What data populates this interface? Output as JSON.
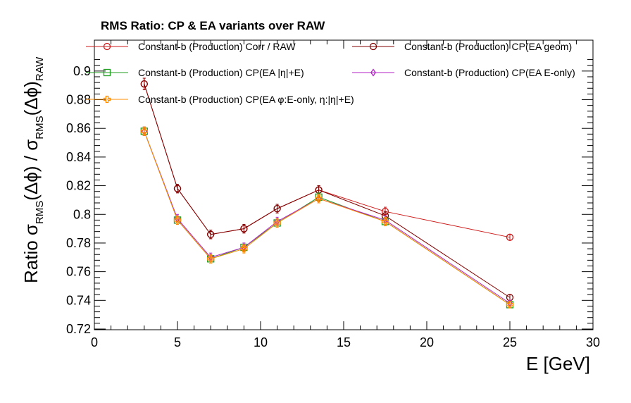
{
  "chart_data": {
    "type": "line",
    "title": "RMS Ratio: CP & EA variants over RAW",
    "xlabel": "E  [GeV]",
    "ylabel": {
      "prefix": "Ratio  σ",
      "sub1": "RMS",
      "mid1": "(Δϕ) / σ",
      "sub2": "RMS",
      "mid2": "(Δϕ)",
      "sub3": "RAW"
    },
    "xlim": [
      0,
      30
    ],
    "ylim": [
      0.72,
      0.91
    ],
    "xticks": [
      0,
      5,
      10,
      15,
      20,
      25,
      30
    ],
    "xtick_labels": [
      "0",
      "5",
      "10",
      "15",
      "20",
      "25",
      "30"
    ],
    "yticks": [
      0.72,
      0.74,
      0.76,
      0.78,
      0.8,
      0.82,
      0.84,
      0.86,
      0.88,
      0.9
    ],
    "ytick_labels": [
      "0.72",
      "0.74",
      "0.76",
      "0.78",
      "0.8",
      "0.82",
      "0.84",
      "0.86",
      "0.88",
      "0.9"
    ],
    "grid": false,
    "legend_position": "top",
    "series": [
      {
        "name": "Constant-b (Production) Corr / RAW",
        "color": "#cc1a1a",
        "marker": "circle",
        "x": [
          3,
          5,
          7,
          9,
          11,
          13.5,
          17.5,
          25
        ],
        "y": [
          0.891,
          0.818,
          0.786,
          0.79,
          0.804,
          0.817,
          0.802,
          0.784
        ],
        "err": [
          0.004,
          0.003,
          0.003,
          0.003,
          0.003,
          0.003,
          0.003,
          0.002
        ]
      },
      {
        "name": "Constant-b (Production) CP(EA geom)",
        "color": "#800000",
        "marker": "circle",
        "x": [
          3,
          5,
          7,
          9,
          11,
          13.5,
          17.5,
          25
        ],
        "y": [
          0.891,
          0.818,
          0.786,
          0.79,
          0.804,
          0.817,
          0.799,
          0.742
        ],
        "err": [
          0.004,
          0.003,
          0.003,
          0.003,
          0.003,
          0.003,
          0.003,
          0.002
        ]
      },
      {
        "name": "Constant-b (Production) CP(EA |η|+E)",
        "color": "#1f9e1f",
        "marker": "square",
        "x": [
          3,
          5,
          7,
          9,
          11,
          13.5,
          17.5,
          25
        ],
        "y": [
          0.858,
          0.796,
          0.769,
          0.777,
          0.794,
          0.812,
          0.795,
          0.737
        ],
        "err": [
          0.003,
          0.003,
          0.003,
          0.003,
          0.003,
          0.003,
          0.003,
          0.002
        ]
      },
      {
        "name": "Constant-b (Production) CP(EA E-only)",
        "color": "#b322c7",
        "marker": "diamond",
        "x": [
          3,
          5,
          7,
          9,
          11,
          13.5,
          17.5,
          25
        ],
        "y": [
          0.858,
          0.797,
          0.77,
          0.777,
          0.795,
          0.811,
          0.796,
          0.738
        ],
        "err": [
          0.003,
          0.003,
          0.003,
          0.003,
          0.003,
          0.003,
          0.003,
          0.002
        ]
      },
      {
        "name": "Constant-b (Production) CP(EA    φ:E-only,  η:|η|+E)",
        "color": "#ff8c00",
        "marker": "cross",
        "x": [
          3,
          5,
          7,
          9,
          11,
          13.5,
          17.5,
          25
        ],
        "y": [
          0.858,
          0.796,
          0.769,
          0.776,
          0.794,
          0.811,
          0.795,
          0.737
        ],
        "err": [
          0.003,
          0.003,
          0.003,
          0.003,
          0.003,
          0.003,
          0.003,
          0.002
        ]
      }
    ]
  }
}
